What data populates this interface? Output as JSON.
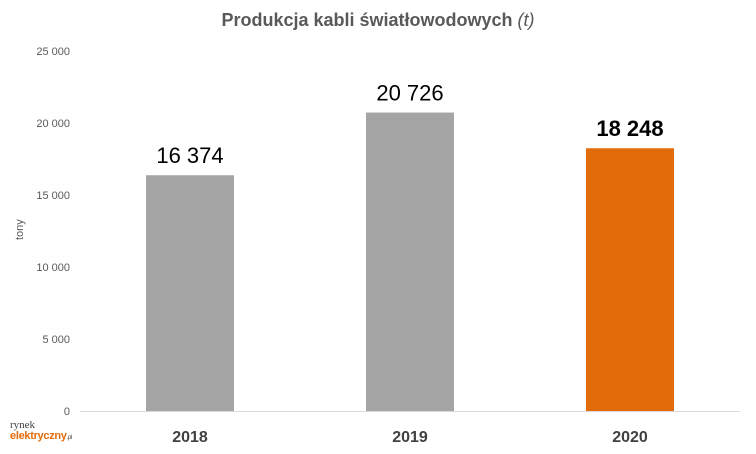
{
  "chart_data": {
    "type": "bar",
    "title": "Produkcja kabli światłowodowych",
    "title_unit": "(t)",
    "ylabel": "tony",
    "categories": [
      "2018",
      "2019",
      "2020"
    ],
    "values": [
      16374,
      20726,
      18248
    ],
    "value_labels": [
      "16 374",
      "20 726",
      "18 248"
    ],
    "bar_colors": [
      "#a5a5a5",
      "#a5a5a5",
      "#e36c0a"
    ],
    "highlight_index": 2,
    "ylim": [
      0,
      25000
    ],
    "yticks": [
      0,
      5000,
      10000,
      15000,
      20000,
      25000
    ],
    "ytick_labels": [
      "0",
      "5 000",
      "10 000",
      "15 000",
      "20 000",
      "25 000"
    ],
    "grid": false
  },
  "logo": {
    "line1": "rynek",
    "line2": "elektryczny",
    "suffix": ".pl"
  }
}
